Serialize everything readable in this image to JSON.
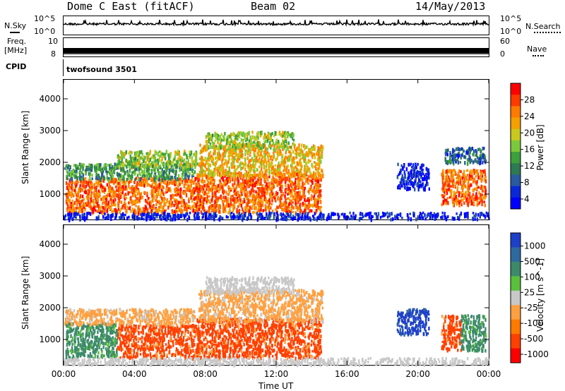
{
  "header": {
    "radar": "Dome C East (fitACF)",
    "beam": "Beam 02",
    "date": "14/May/2013"
  },
  "strips": {
    "nsky_label": "N.Sky",
    "nsearch_label": "N.Search",
    "freq_label": "Freq.",
    "freq_unit": "[MHz]",
    "nave_label": "Nave",
    "cpid_label": "CPID",
    "cpid_value": "twofsound 3501",
    "nsky_ticks_left": [
      "10^5",
      "10^0"
    ],
    "nsky_ticks_right": [
      "10^5",
      "10^0"
    ],
    "freq_ticks_left": [
      "10",
      "8"
    ],
    "nave_ticks_right": [
      "60",
      "0"
    ]
  },
  "chart_data": [
    {
      "type": "heatmap",
      "name": "power",
      "ylabel": "Slant Range [km]",
      "xlabel": "",
      "x_ticks": [
        "00:00",
        "04:00",
        "08:00",
        "12:00",
        "16:00",
        "20:00",
        "00:00"
      ],
      "y_ticks": [
        "1000",
        "2000",
        "3000",
        "4000"
      ],
      "ylim": [
        200,
        4600
      ],
      "xlim": [
        0,
        24
      ],
      "colorbar": {
        "label": "Power [dB]",
        "ticks": [
          "28",
          "24",
          "20",
          "16",
          "12",
          "8",
          "4"
        ],
        "colors": [
          "#ff0000",
          "#ff3a00",
          "#ff7a00",
          "#f4a000",
          "#c8c81e",
          "#7cc83c",
          "#3ca03c",
          "#2e7a52",
          "#2a5aa0",
          "#0a28d8",
          "#0000ff"
        ]
      },
      "regions": [
        {
          "t0": 0.1,
          "t1": 7.6,
          "r0": 450,
          "r1": 1550,
          "level": 28
        },
        {
          "t0": 0.0,
          "t1": 7.4,
          "r0": 1500,
          "r1": 2000,
          "level": 16
        },
        {
          "t0": 3.0,
          "t1": 7.5,
          "r0": 1900,
          "r1": 2400,
          "level": 20
        },
        {
          "t0": 7.5,
          "t1": 14.5,
          "r0": 450,
          "r1": 1700,
          "level": 28
        },
        {
          "t0": 7.6,
          "t1": 14.6,
          "r0": 1600,
          "r1": 2600,
          "level": 24
        },
        {
          "t0": 8.0,
          "t1": 13.0,
          "r0": 2500,
          "r1": 3000,
          "level": 20
        },
        {
          "t0": 18.8,
          "t1": 20.6,
          "r0": 1200,
          "r1": 2000,
          "level": 8
        },
        {
          "t0": 21.3,
          "t1": 23.8,
          "r0": 700,
          "r1": 1800,
          "level": 28
        },
        {
          "t0": 21.5,
          "t1": 23.8,
          "r0": 2000,
          "r1": 2500,
          "level": 12
        },
        {
          "t0": 0.0,
          "t1": 24.0,
          "r0": 250,
          "r1": 450,
          "level": 8
        }
      ]
    },
    {
      "type": "heatmap",
      "name": "velocity",
      "ylabel": "Slant Range [km]",
      "xlabel": "Time UT",
      "x_ticks": [
        "00:00",
        "04:00",
        "08:00",
        "12:00",
        "16:00",
        "20:00",
        "00:00"
      ],
      "y_ticks": [
        "1000",
        "2000",
        "3000",
        "4000"
      ],
      "ylim": [
        200,
        4600
      ],
      "xlim": [
        0,
        24
      ],
      "colorbar": {
        "label": "Velocity [m s^-1]",
        "ticks": [
          "1000",
          "500",
          "100",
          "25",
          "-25",
          "-100",
          "-500",
          "-1000"
        ],
        "colors": [
          "#1e40c8",
          "#2e6aa0",
          "#3c8a6a",
          "#5abf3c",
          "#c8c8c8",
          "#ffa040",
          "#ff7a00",
          "#ff4000",
          "#ff0000"
        ]
      },
      "regions": [
        {
          "t0": 0.1,
          "t1": 3.0,
          "r0": 450,
          "r1": 1550,
          "velocity": 100
        },
        {
          "t0": 3.0,
          "t1": 7.6,
          "r0": 450,
          "r1": 1500,
          "velocity": -500
        },
        {
          "t0": 0.0,
          "t1": 7.4,
          "r0": 1500,
          "r1": 2000,
          "velocity": -100
        },
        {
          "t0": 7.5,
          "t1": 14.5,
          "r0": 450,
          "r1": 1700,
          "velocity": -500
        },
        {
          "t0": 7.6,
          "t1": 14.6,
          "r0": 1600,
          "r1": 2600,
          "velocity": -100
        },
        {
          "t0": 8.0,
          "t1": 13.0,
          "r0": 2500,
          "r1": 3000,
          "velocity": 25
        },
        {
          "t0": 18.8,
          "t1": 20.6,
          "r0": 1200,
          "r1": 2000,
          "velocity": 1000
        },
        {
          "t0": 21.3,
          "t1": 22.4,
          "r0": 700,
          "r1": 1800,
          "velocity": -500
        },
        {
          "t0": 22.4,
          "t1": 23.8,
          "r0": 700,
          "r1": 1800,
          "velocity": 100
        },
        {
          "t0": 0.0,
          "t1": 24.0,
          "r0": 250,
          "r1": 450,
          "velocity": 25
        }
      ]
    }
  ]
}
